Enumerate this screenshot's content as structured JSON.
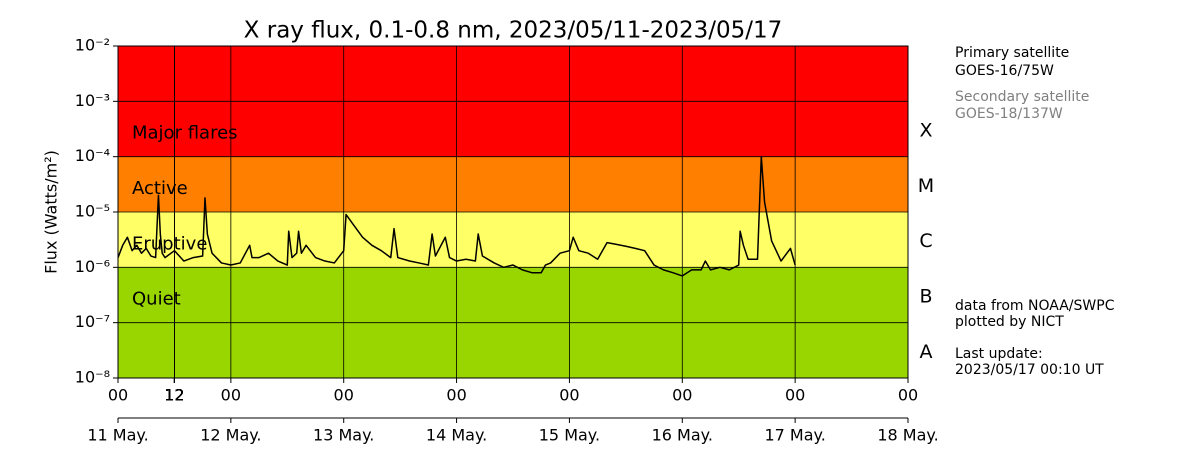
{
  "chart_data": {
    "type": "line",
    "title": "X ray flux, 0.1-0.8 nm, 2023/05/11-2023/05/17",
    "y_label": "Flux (Watts/m²)",
    "log_y": true,
    "grid": true,
    "ylim": [
      1e-08,
      0.01
    ],
    "yticks": [
      {
        "value": 1e-08,
        "label": "10⁻⁸"
      },
      {
        "value": 1e-07,
        "label": "10⁻⁷"
      },
      {
        "value": 1e-06,
        "label": "10⁻⁶"
      },
      {
        "value": 1e-05,
        "label": "10⁻⁵"
      },
      {
        "value": 0.0001,
        "label": "10⁻⁴"
      },
      {
        "value": 0.001,
        "label": "10⁻³"
      },
      {
        "value": 0.01,
        "label": "10⁻²"
      }
    ],
    "xlim": [
      0,
      168
    ],
    "xticks": [
      {
        "value": 0,
        "label": "00"
      },
      12,
      {
        "value": 24,
        "label": "00"
      },
      12,
      {
        "value": 48,
        "label": "00"
      },
      12,
      {
        "value": 72,
        "label": "00"
      },
      12,
      {
        "value": 96,
        "label": "00"
      },
      12,
      {
        "value": 120,
        "label": "00"
      },
      12,
      {
        "value": 144,
        "label": "00"
      },
      12,
      {
        "value": 168,
        "label": "00"
      }
    ],
    "date_ticks": [
      {
        "value": 0,
        "label": "11 May."
      },
      {
        "value": 24,
        "label": "12 May."
      },
      {
        "value": 48,
        "label": "13 May."
      },
      {
        "value": 72,
        "label": "14 May."
      },
      {
        "value": 96,
        "label": "15 May."
      },
      {
        "value": 120,
        "label": "16 May."
      },
      {
        "value": 144,
        "label": "17 May."
      },
      {
        "value": 168,
        "label": "18 May."
      }
    ],
    "bands": [
      {
        "from": 0.0001,
        "to": 0.01,
        "color": "#ff0000",
        "label": "Major flares"
      },
      {
        "from": 1e-05,
        "to": 0.0001,
        "color": "#ff7f00",
        "label": "Active"
      },
      {
        "from": 1e-06,
        "to": 1e-05,
        "color": "#ffff66",
        "label": "Eruptive"
      },
      {
        "from": 1e-08,
        "to": 1e-06,
        "color": "#99d600",
        "label": "Quiet"
      }
    ],
    "classes": [
      {
        "from": 0.0001,
        "label": "X"
      },
      {
        "from": 1e-05,
        "label": "M"
      },
      {
        "from": 1e-06,
        "label": "C"
      },
      {
        "from": 1e-07,
        "label": "B"
      },
      {
        "from": 1e-08,
        "label": "A"
      }
    ],
    "x": [
      0,
      1,
      2,
      3,
      4,
      5,
      6,
      7,
      8,
      8.6,
      9,
      9.4,
      10,
      12,
      14,
      16,
      18,
      18.5,
      19,
      20,
      22,
      24,
      26,
      28,
      28.5,
      30,
      32,
      34,
      36,
      36.3,
      37,
      38,
      38.4,
      39,
      40,
      42,
      44,
      46,
      48,
      48.5,
      50,
      52,
      54,
      56,
      58,
      58.7,
      59.5,
      62,
      64,
      66,
      66.8,
      67.5,
      69.6,
      70.5,
      72,
      74,
      76,
      76.6,
      77.5,
      80,
      82,
      84,
      86,
      88,
      90,
      90.9,
      92,
      94,
      96,
      96.8,
      98,
      100,
      102,
      104,
      106,
      108,
      110,
      112,
      114,
      116,
      118,
      120,
      122,
      124,
      124.9,
      126,
      128,
      130,
      132,
      132.3,
      133,
      134,
      136,
      136.8,
      137.5,
      139,
      141,
      143,
      144
    ],
    "series": [
      {
        "name": "GOES-16/75W",
        "color": "#000000",
        "values": [
          1.5e-06,
          2.5e-06,
          3.5e-06,
          2e-06,
          2.5e-06,
          1.8e-06,
          2.2e-06,
          1.6e-06,
          1.5e-06,
          2e-05,
          4e-06,
          1.8e-06,
          1.5e-06,
          2e-06,
          1.3e-06,
          1.5e-06,
          1.6e-06,
          1.8e-05,
          4e-06,
          1.8e-06,
          1.2e-06,
          1.1e-06,
          1.2e-06,
          2.5e-06,
          1.5e-06,
          1.5e-06,
          1.8e-06,
          1.3e-06,
          1.1e-06,
          4.5e-06,
          1.5e-06,
          1.8e-06,
          4.5e-06,
          1.8e-06,
          2.5e-06,
          1.5e-06,
          1.3e-06,
          1.2e-06,
          2e-06,
          9e-06,
          6e-06,
          3.5e-06,
          2.5e-06,
          2e-06,
          1.5e-06,
          5e-06,
          1.5e-06,
          1.3e-06,
          1.2e-06,
          1.1e-06,
          4e-06,
          1.6e-06,
          3.5e-06,
          1.5e-06,
          1.3e-06,
          1.4e-06,
          1.3e-06,
          4e-06,
          1.6e-06,
          1.2e-06,
          1e-06,
          1.1e-06,
          9e-07,
          8e-07,
          8e-07,
          1.1e-06,
          1.2e-06,
          1.8e-06,
          2e-06,
          3.5e-06,
          2e-06,
          1.8e-06,
          1.4e-06,
          2.8e-06,
          2.6e-06,
          2.4e-06,
          2.2e-06,
          2e-06,
          1.1e-06,
          9e-07,
          8e-07,
          7e-07,
          9e-07,
          9e-07,
          1.3e-06,
          9e-07,
          1e-06,
          9e-07,
          1.1e-06,
          4.5e-06,
          2.5e-06,
          1.4e-06,
          1.4e-06,
          0.0001,
          1.5e-05,
          3e-06,
          1.3e-06,
          2.2e-06,
          1.1e-06
        ]
      }
    ],
    "annotations": [
      {
        "text": "Primary satellite",
        "color": "#000000"
      },
      {
        "text": "GOES-16/75W",
        "color": "#000000"
      },
      {
        "text": "Secondary satellite",
        "color": "#808080"
      },
      {
        "text": "GOES-18/137W",
        "color": "#808080"
      },
      {
        "text": "data from NOAA/SWPC",
        "color": "#000000"
      },
      {
        "text": "plotted by NICT",
        "color": "#000000"
      },
      {
        "text": "Last update:",
        "color": "#000000"
      },
      {
        "text": "2023/05/17 00:10 UT",
        "color": "#000000"
      }
    ]
  }
}
